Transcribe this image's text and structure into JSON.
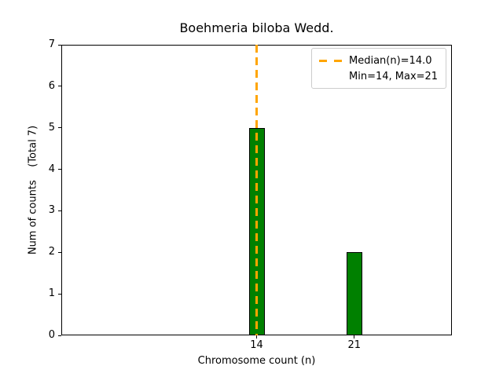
{
  "chart_data": {
    "type": "bar",
    "title": "Boehmeria biloba Wedd.",
    "xlabel": "Chromosome count (n)",
    "ylabel": "Num of counts    (Total 7)",
    "categories": [
      14,
      21
    ],
    "values": [
      5,
      2
    ],
    "xtick_labels": [
      "14",
      "21"
    ],
    "yticks": [
      0,
      1,
      2,
      3,
      4,
      5,
      6,
      7
    ],
    "xlim": [
      0,
      28
    ],
    "ylim": [
      0,
      7
    ],
    "grid": false,
    "bar_color": "#008000",
    "bar_edge_color": "#000000",
    "median_line": {
      "x": 14,
      "color": "#FFA500",
      "style": "dashed"
    },
    "legend": {
      "position": "upper right",
      "median_label": "Median(n)=14.0",
      "minmax_label": "Min=14, Max=21"
    }
  }
}
